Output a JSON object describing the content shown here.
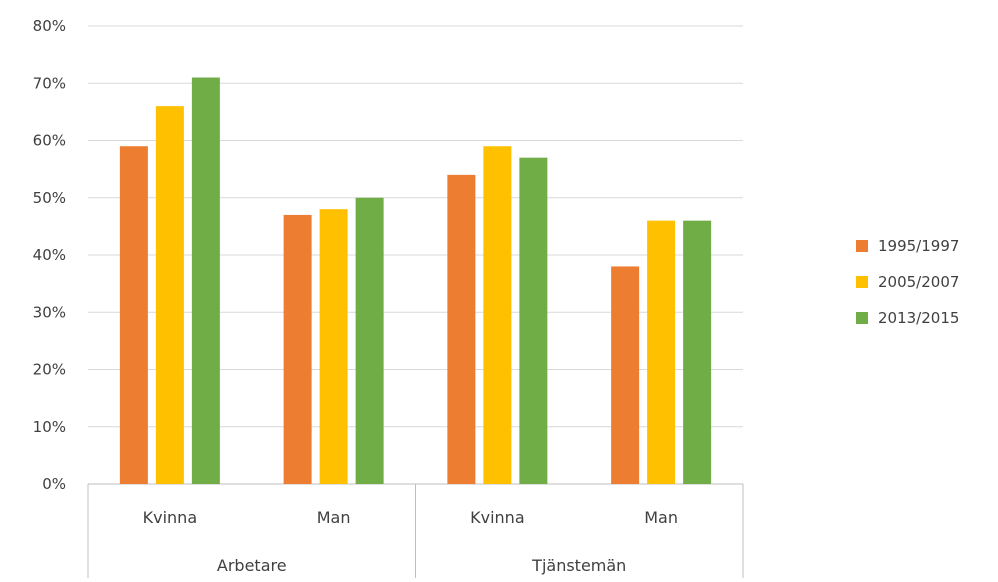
{
  "chart_data": {
    "type": "bar",
    "title": "",
    "xlabel": "",
    "ylabel": "",
    "ylim": [
      0,
      80
    ],
    "y_ticks": [
      "0%",
      "10%",
      "20%",
      "30%",
      "40%",
      "50%",
      "60%",
      "70%",
      "80%"
    ],
    "groups": [
      {
        "label": "Arbetare",
        "categories": [
          "Kvinna",
          "Man"
        ]
      },
      {
        "label": "Tjänstemän",
        "categories": [
          "Kvinna",
          "Man"
        ]
      }
    ],
    "categories": [
      "Kvinna",
      "Man",
      "Kvinna",
      "Man"
    ],
    "series": [
      {
        "name": "1995/1997",
        "color": "#ED7D31",
        "values": [
          59,
          47,
          54,
          38
        ]
      },
      {
        "name": "2005/2007",
        "color": "#FFC000",
        "values": [
          66,
          48,
          59,
          46
        ]
      },
      {
        "name": "2013/2015",
        "color": "#70AD47",
        "values": [
          71,
          50,
          57,
          46
        ]
      }
    ],
    "grid": true,
    "legend_position": "right"
  }
}
